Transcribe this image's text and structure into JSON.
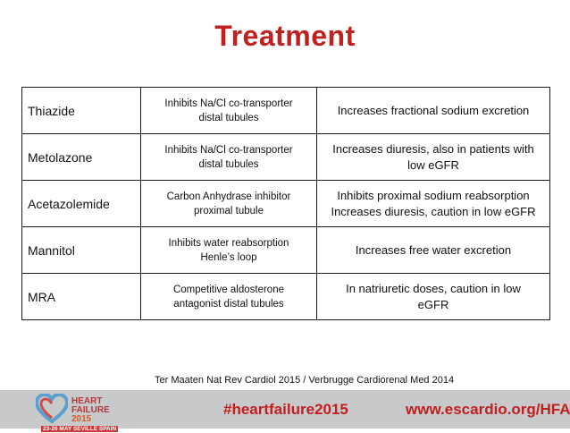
{
  "slide": {
    "title": "Treatment"
  },
  "table": {
    "rows": [
      {
        "drug": "Thiazide",
        "mechanism": [
          "Inhibits Na/Cl co-transporter",
          "distal tubules"
        ],
        "effect": [
          "Increases fractional sodium excretion"
        ]
      },
      {
        "drug": "Metolazone",
        "mechanism": [
          "Inhibits Na/Cl co-transporter",
          "distal tubules"
        ],
        "effect": [
          "Increases diuresis, also in patients with",
          "low eGFR"
        ]
      },
      {
        "drug": "Acetazolemide",
        "mechanism": [
          "Carbon Anhydrase inhibitor",
          "proximal tubule"
        ],
        "effect": [
          "Inhibits proximal sodium reabsorption",
          "Increases diuresis, caution in low eGFR"
        ]
      },
      {
        "drug": "Mannitol",
        "mechanism": [
          "Inhibits water reabsorption",
          "Henle’s loop"
        ],
        "effect": [
          "Increases free water excretion"
        ]
      },
      {
        "drug": "MRA",
        "mechanism": [
          "Competitive aldosterone",
          "antagonist distal tubules"
        ],
        "effect": [
          "In natriuretic doses, caution in low",
          "eGFR"
        ]
      }
    ]
  },
  "reference": "Ter Maaten Nat Rev Cardiol 2015 / Verbrugge Cardiorenal Med 2014",
  "footer": {
    "logo": {
      "line1": "HEART",
      "line2": "FAILURE",
      "year": "2015",
      "dates": "23-26 MAY SEVILLE SPAIN"
    },
    "hashtag": "#heartfailure2015",
    "website": "www.escardio.org/HFA"
  },
  "colors": {
    "title": "#c0201e",
    "footer_bg": "#c8c9cb",
    "footer_text": "#c0201e"
  }
}
